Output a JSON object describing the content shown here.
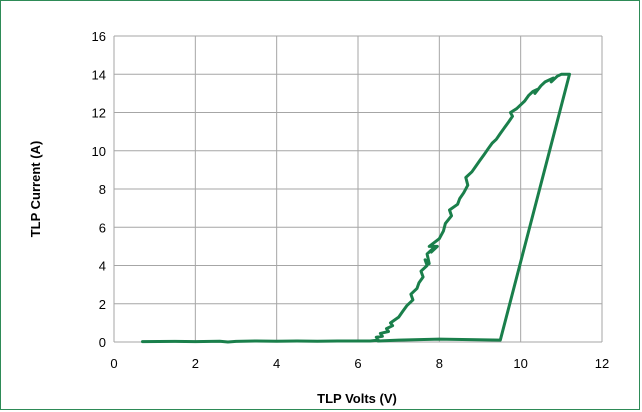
{
  "chart_data": {
    "type": "line",
    "title": "",
    "xlabel": "TLP Volts (V)",
    "ylabel": "TLP Current (A)",
    "xlim": [
      0,
      12
    ],
    "ylim": [
      0,
      16
    ],
    "xticks": [
      0,
      2,
      4,
      6,
      8,
      10,
      12
    ],
    "yticks": [
      0,
      2,
      4,
      6,
      8,
      10,
      12,
      14,
      16
    ],
    "grid": true,
    "legend": "none",
    "colors": {
      "series": "#1a7f4b",
      "grid": "#a6a6a6",
      "frame": "#2e8b57"
    },
    "series": [
      {
        "name": "",
        "x": [
          0.7,
          1.5,
          2.0,
          2.6,
          2.8,
          3.0,
          3.5,
          4.0,
          4.5,
          5.0,
          5.5,
          6.0,
          6.3,
          6.5,
          6.45,
          6.6,
          6.55,
          6.75,
          6.7,
          6.85,
          6.8,
          7.0,
          7.1,
          7.2,
          7.35,
          7.3,
          7.45,
          7.5,
          7.6,
          7.55,
          7.7,
          7.65,
          7.75,
          7.7,
          7.85,
          7.8,
          7.95,
          7.75,
          8.0,
          8.1,
          8.15,
          8.3,
          8.25,
          8.45,
          8.5,
          8.6,
          8.7,
          8.65,
          8.8,
          8.9,
          9.0,
          9.1,
          9.2,
          9.3,
          9.4,
          9.5,
          9.6,
          9.7,
          9.8,
          9.75,
          9.9,
          10.0,
          10.1,
          10.2,
          10.3,
          10.4,
          10.35,
          10.5,
          10.6,
          10.7,
          10.8,
          10.75,
          10.9,
          11.0,
          11.1,
          11.2,
          9.5,
          8.0,
          7.0,
          6.5
        ],
        "y": [
          0.02,
          0.03,
          0.02,
          0.04,
          0.0,
          0.03,
          0.05,
          0.04,
          0.05,
          0.04,
          0.05,
          0.05,
          0.05,
          0.1,
          0.25,
          0.3,
          0.45,
          0.55,
          0.7,
          0.85,
          1.0,
          1.3,
          1.6,
          1.9,
          2.2,
          2.5,
          2.8,
          3.1,
          3.4,
          3.7,
          4.0,
          4.3,
          4.1,
          4.6,
          4.9,
          4.7,
          5.0,
          5.0,
          5.4,
          5.8,
          6.2,
          6.6,
          6.9,
          7.2,
          7.5,
          7.8,
          8.2,
          8.6,
          8.9,
          9.2,
          9.5,
          9.8,
          10.1,
          10.4,
          10.6,
          10.9,
          11.2,
          11.5,
          11.8,
          12.0,
          12.2,
          12.4,
          12.6,
          12.9,
          13.1,
          13.2,
          13.0,
          13.4,
          13.6,
          13.7,
          13.8,
          13.6,
          13.9,
          14.0,
          14.0,
          14.0,
          0.1,
          0.15,
          0.1,
          0.05
        ]
      }
    ]
  }
}
